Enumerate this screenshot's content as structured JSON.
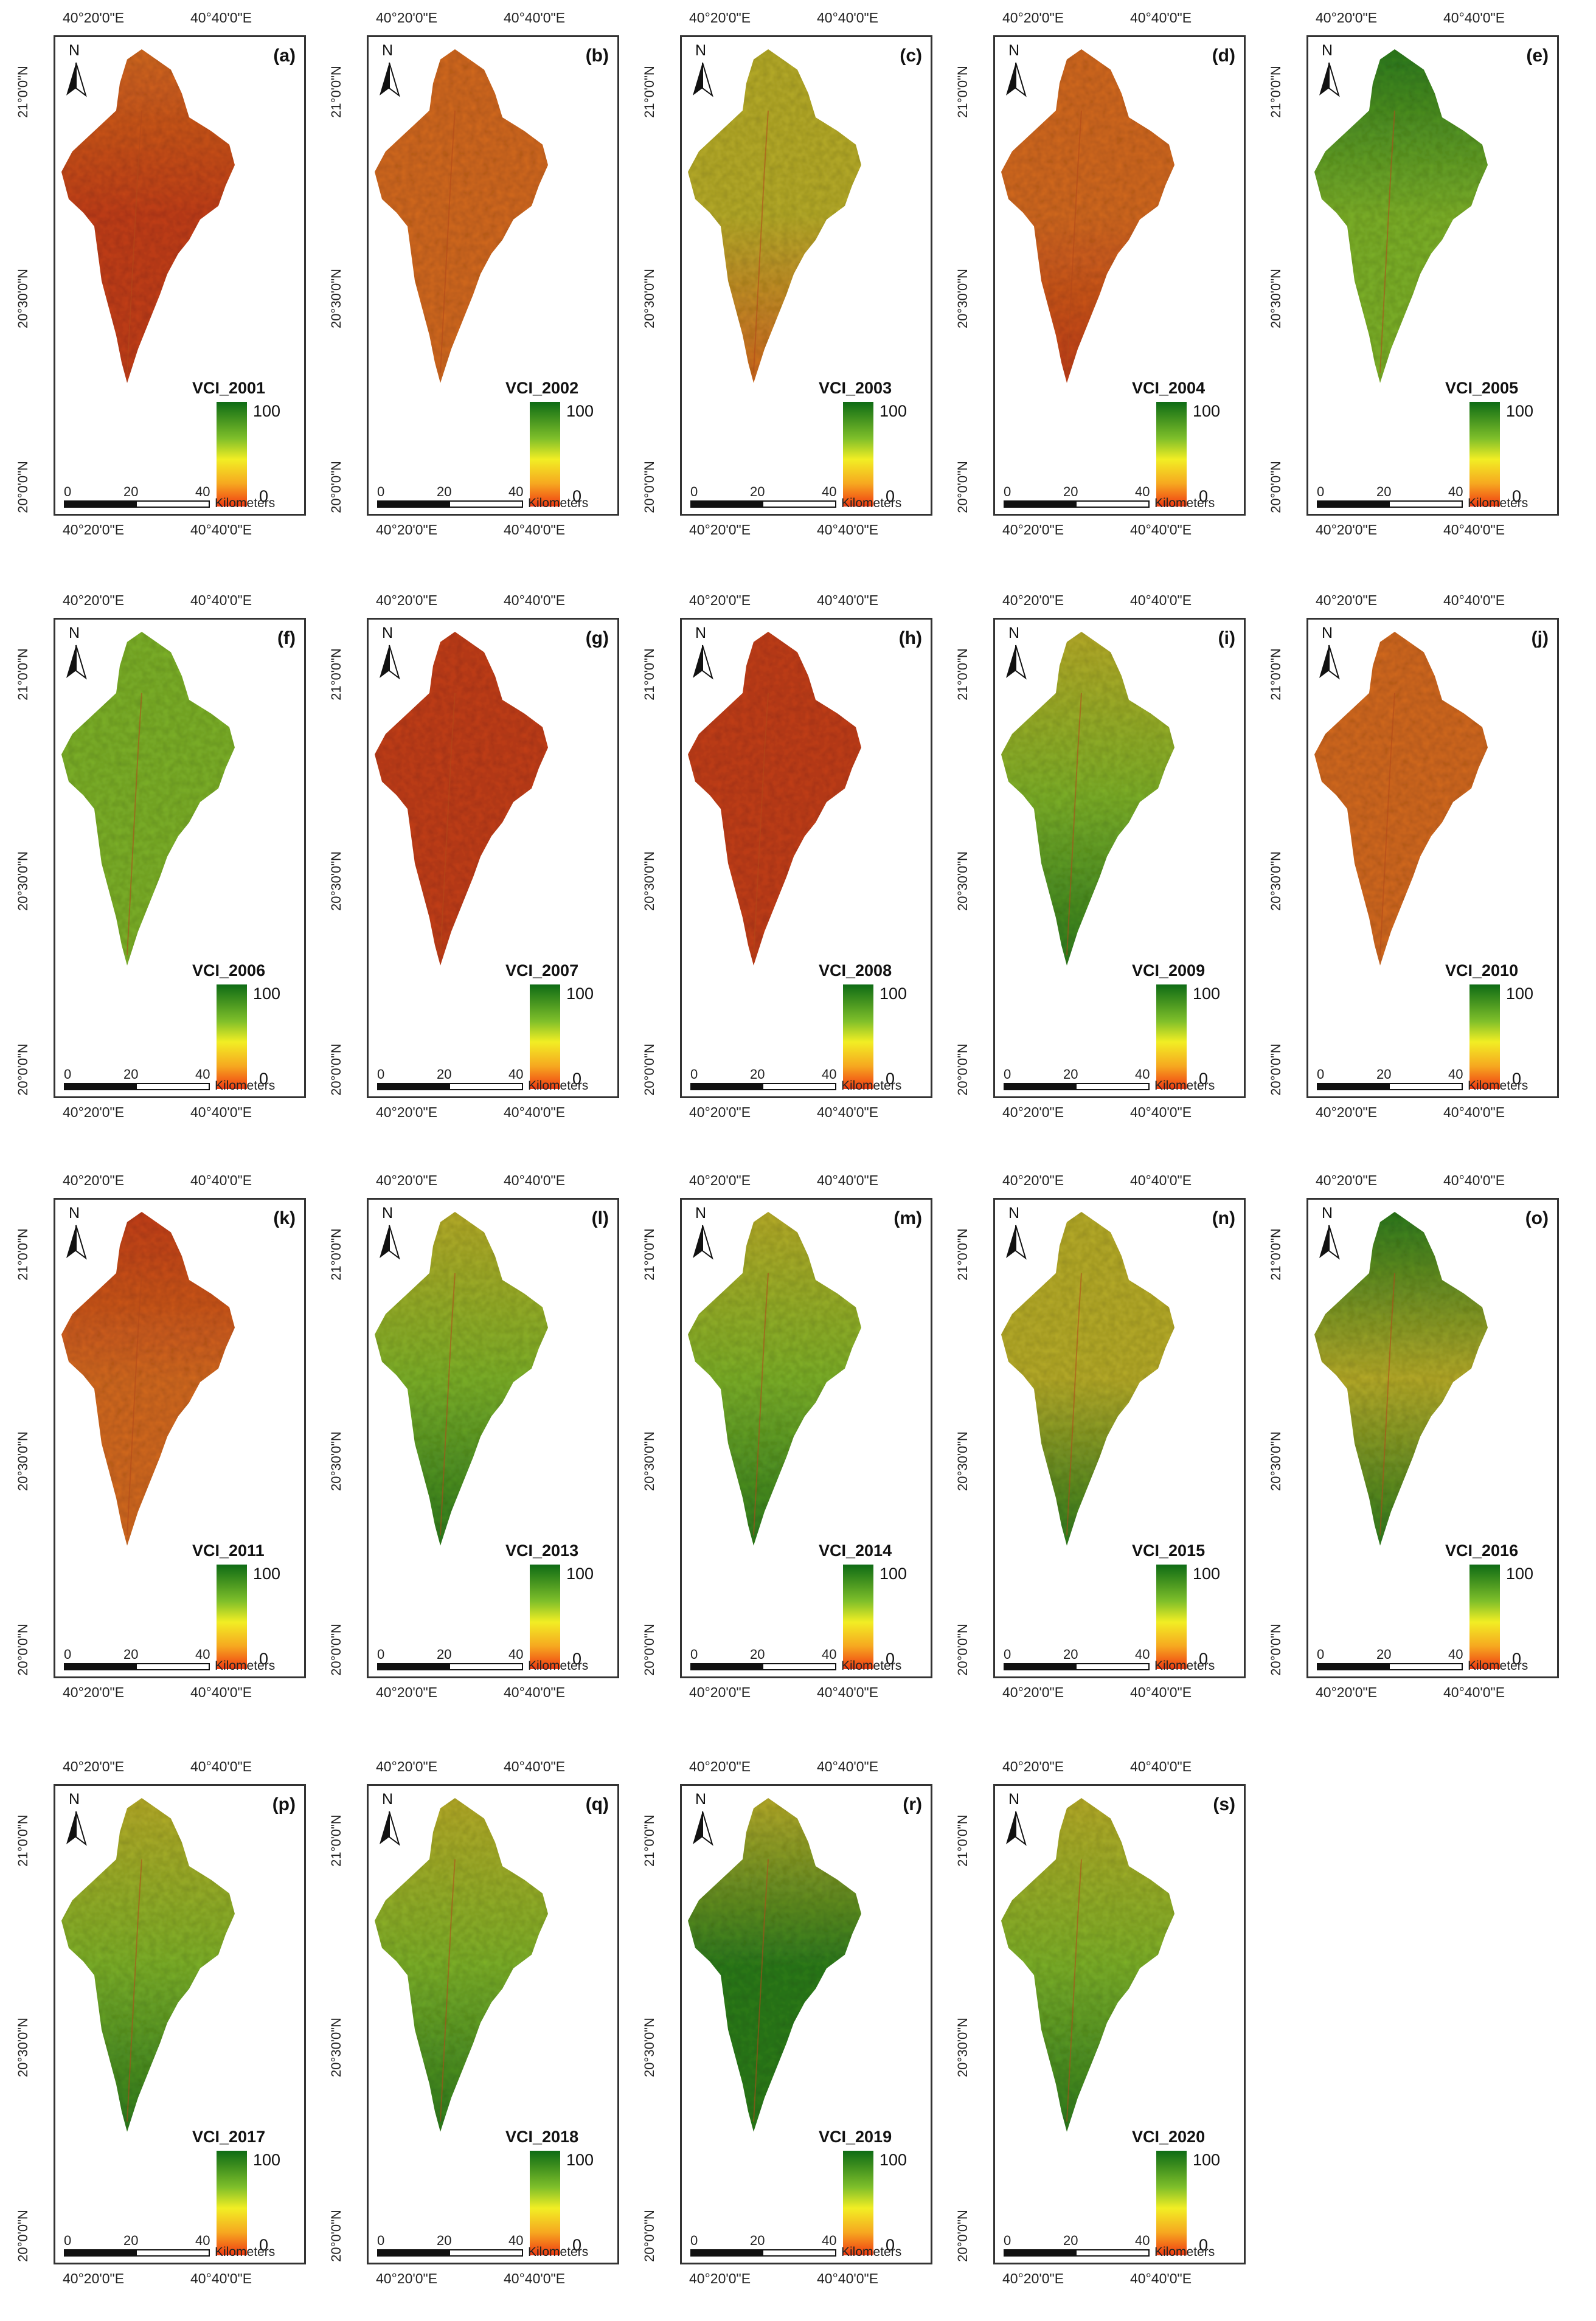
{
  "lon_labels": {
    "west": "40°20'0\"E",
    "east": "40°40'0\"E"
  },
  "lat_labels": {
    "north": "21°0'0\"N",
    "mid": "20°30'0\"N",
    "south": "20°0'0\"N"
  },
  "north_label": "N",
  "scale": {
    "zero": "0",
    "mid": "20",
    "end": "40",
    "unit": "Kilometers"
  },
  "legend": {
    "max": "100",
    "min": "0",
    "colors": [
      "#0e6b15",
      "#7fbf2a",
      "#f2ee24",
      "#f6a820",
      "#f03a12"
    ]
  },
  "palette": {
    "dry": "#c4401b",
    "drymix": "#d46a22",
    "mid": "#b8ad2c",
    "wet": "#7eb22c",
    "verywet": "#2f7d1f"
  },
  "panels": [
    {
      "letter": "(a)",
      "label": "VCI_2001",
      "north": "drymix",
      "center": "dry",
      "south": "dry",
      "vci_south": 0.15,
      "vci_north": 0.15
    },
    {
      "letter": "(b)",
      "label": "VCI_2002",
      "north": "drymix",
      "center": "drymix",
      "south": "drymix",
      "vci_south": 0.25,
      "vci_north": 0.25
    },
    {
      "letter": "(c)",
      "label": "VCI_2003",
      "north": "mid",
      "center": "mid",
      "south": "drymix",
      "vci_south": 0.35,
      "vci_north": 0.5
    },
    {
      "letter": "(d)",
      "label": "VCI_2004",
      "north": "drymix",
      "center": "drymix",
      "south": "dry",
      "vci_south": 0.15,
      "vci_north": 0.3
    },
    {
      "letter": "(e)",
      "label": "VCI_2005",
      "north": "verywet",
      "center": "wet",
      "south": "wet",
      "vci_south": 0.7,
      "vci_north": 0.9
    },
    {
      "letter": "(f)",
      "label": "VCI_2006",
      "north": "wet",
      "center": "wet",
      "south": "wet",
      "vci_south": 0.7,
      "vci_north": 0.75
    },
    {
      "letter": "(g)",
      "label": "VCI_2007",
      "north": "dry",
      "center": "dry",
      "south": "dry",
      "vci_south": 0.1,
      "vci_north": 0.15
    },
    {
      "letter": "(h)",
      "label": "VCI_2008",
      "north": "dry",
      "center": "dry",
      "south": "dry",
      "vci_south": 0.1,
      "vci_north": 0.1
    },
    {
      "letter": "(i)",
      "label": "VCI_2009",
      "north": "mid",
      "center": "wet",
      "south": "verywet",
      "vci_south": 0.9,
      "vci_north": 0.5
    },
    {
      "letter": "(j)",
      "label": "VCI_2010",
      "north": "drymix",
      "center": "drymix",
      "south": "drymix",
      "vci_south": 0.25,
      "vci_north": 0.25
    },
    {
      "letter": "(k)",
      "label": "VCI_2011",
      "north": "dry",
      "center": "drymix",
      "south": "drymix",
      "vci_south": 0.25,
      "vci_north": 0.15
    },
    {
      "letter": "(l)",
      "label": "VCI_2013",
      "north": "mid",
      "center": "wet",
      "south": "verywet",
      "vci_south": 0.85,
      "vci_north": 0.5
    },
    {
      "letter": "(m)",
      "label": "VCI_2014",
      "north": "mid",
      "center": "wet",
      "south": "verywet",
      "vci_south": 0.85,
      "vci_north": 0.5
    },
    {
      "letter": "(n)",
      "label": "VCI_2015",
      "north": "mid",
      "center": "mid",
      "south": "verywet",
      "vci_south": 0.85,
      "vci_north": 0.45
    },
    {
      "letter": "(o)",
      "label": "VCI_2016",
      "north": "verywet",
      "center": "mid",
      "south": "verywet",
      "vci_south": 0.85,
      "vci_north": 0.6
    },
    {
      "letter": "(p)",
      "label": "VCI_2017",
      "north": "mid",
      "center": "wet",
      "south": "verywet",
      "vci_south": 0.85,
      "vci_north": 0.45
    },
    {
      "letter": "(q)",
      "label": "VCI_2018",
      "north": "mid",
      "center": "wet",
      "south": "verywet",
      "vci_south": 0.85,
      "vci_north": 0.45
    },
    {
      "letter": "(r)",
      "label": "VCI_2019",
      "north": "mid",
      "center": "verywet",
      "south": "verywet",
      "vci_south": 0.9,
      "vci_north": 0.5
    },
    {
      "letter": "(s)",
      "label": "VCI_2020",
      "north": "mid",
      "center": "wet",
      "south": "verywet",
      "vci_south": 0.85,
      "vci_north": 0.45
    }
  ]
}
